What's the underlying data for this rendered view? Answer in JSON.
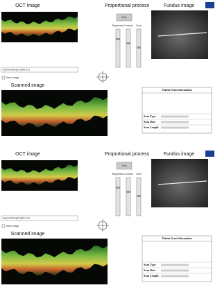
{
  "panels": [
    {
      "oct_label": "OCT image",
      "process_label": "Proportional process",
      "fundus_label": "Fundus image",
      "stop_button": "Stop",
      "slider_labels": [
        "Brightness",
        "Contrast",
        "Color"
      ],
      "signal_label": "Signal Strength (Max 10)",
      "save_label": "Save image",
      "scanned_label": "Scanned image",
      "info": {
        "title": "Patient Scan Information",
        "fields": [
          "Scan Type",
          "Scan Date",
          "Scan Length"
        ]
      }
    },
    {
      "oct_label": "OCT image",
      "process_label": "Proportional process",
      "fundus_label": "Fundus image",
      "stop_button": "Stop",
      "slider_labels": [
        "Brightness",
        "Contrast",
        "Color"
      ],
      "signal_label": "Signal Strength (Max 10)",
      "save_label": "Save image",
      "scanned_label": "Scanned image",
      "info": {
        "title": "Patient Scan Information",
        "fields": [
          "Scan Type",
          "Scan Date",
          "Scan Length"
        ]
      }
    }
  ]
}
